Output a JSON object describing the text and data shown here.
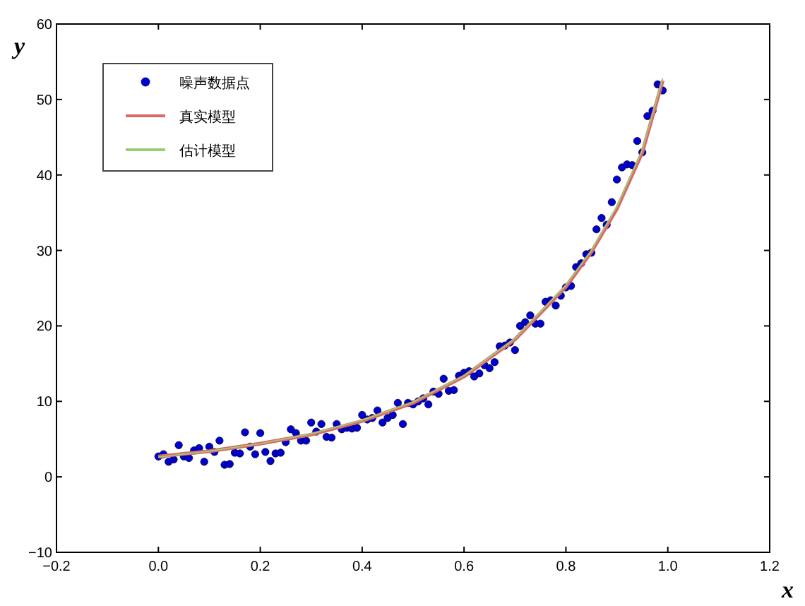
{
  "chart_data": {
    "type": "scatter",
    "xlabel": "x",
    "ylabel": "y",
    "xlim": [
      -0.2,
      1.2
    ],
    "ylim": [
      -10,
      60
    ],
    "xticks": [
      {
        "value": -0.2,
        "label": "−0.2"
      },
      {
        "value": 0.0,
        "label": "0.0"
      },
      {
        "value": 0.2,
        "label": "0.2"
      },
      {
        "value": 0.4,
        "label": "0.4"
      },
      {
        "value": 0.6,
        "label": "0.6"
      },
      {
        "value": 0.8,
        "label": "0.8"
      },
      {
        "value": 1.0,
        "label": "1.0"
      },
      {
        "value": 1.2,
        "label": "1.2"
      }
    ],
    "yticks": [
      {
        "value": -10,
        "label": "−10"
      },
      0,
      10,
      20,
      30,
      40,
      50,
      60
    ],
    "legend": "top left",
    "grid": false,
    "series": [
      {
        "name": "噪声数据点",
        "marker": "circle",
        "color": "#0000cc",
        "x": [
          0.0,
          0.01,
          0.02,
          0.03,
          0.04,
          0.05,
          0.06,
          0.07,
          0.08,
          0.09,
          0.1,
          0.11,
          0.12,
          0.13,
          0.14,
          0.15,
          0.16,
          0.17,
          0.18,
          0.19,
          0.2,
          0.21,
          0.22,
          0.23,
          0.24,
          0.25,
          0.26,
          0.27,
          0.28,
          0.29,
          0.3,
          0.31,
          0.32,
          0.33,
          0.34,
          0.35,
          0.36,
          0.37,
          0.38,
          0.39,
          0.4,
          0.41,
          0.42,
          0.43,
          0.44,
          0.45,
          0.46,
          0.47,
          0.48,
          0.49,
          0.5,
          0.51,
          0.52,
          0.53,
          0.54,
          0.55,
          0.56,
          0.57,
          0.58,
          0.59,
          0.6,
          0.61,
          0.62,
          0.63,
          0.64,
          0.65,
          0.66,
          0.67,
          0.68,
          0.69,
          0.7,
          0.71,
          0.72,
          0.73,
          0.74,
          0.75,
          0.76,
          0.77,
          0.78,
          0.79,
          0.8,
          0.81,
          0.82,
          0.83,
          0.84,
          0.85,
          0.86,
          0.87,
          0.88,
          0.89,
          0.9,
          0.91,
          0.92,
          0.93,
          0.94,
          0.95,
          0.96,
          0.97,
          0.98,
          0.99
        ],
        "values": [
          2.7,
          3.0,
          2.0,
          2.3,
          4.2,
          2.7,
          2.5,
          3.5,
          3.8,
          2.0,
          4.0,
          3.3,
          4.8,
          1.6,
          1.7,
          3.2,
          3.1,
          5.9,
          4.0,
          3.0,
          5.8,
          3.3,
          2.1,
          3.1,
          3.2,
          4.6,
          6.3,
          5.8,
          4.8,
          4.8,
          7.2,
          6.0,
          7.0,
          5.3,
          5.2,
          7.0,
          6.3,
          6.5,
          6.4,
          6.5,
          8.2,
          7.6,
          7.8,
          8.8,
          7.2,
          7.8,
          8.2,
          9.8,
          7.0,
          9.8,
          9.6,
          10.0,
          10.4,
          9.6,
          11.3,
          11.0,
          13.0,
          11.4,
          11.5,
          13.4,
          13.8,
          14.0,
          13.3,
          13.7,
          14.8,
          14.4,
          15.2,
          17.3,
          17.4,
          17.8,
          16.8,
          20.0,
          20.5,
          21.4,
          20.3,
          20.3,
          23.2,
          23.4,
          22.7,
          24.0,
          25.1,
          25.3,
          27.8,
          28.3,
          29.5,
          29.7,
          32.8,
          34.3,
          33.4,
          36.4,
          39.4,
          41.0,
          41.4,
          41.3,
          44.5,
          43.0,
          47.8,
          48.5,
          52.0,
          51.2
        ]
      },
      {
        "name": "真实模型",
        "type": "line",
        "marker": "none",
        "line_style": "solid",
        "color": "#e06666",
        "x": [
          0,
          0.1,
          0.2,
          0.3,
          0.4,
          0.5,
          0.6,
          0.7,
          0.8,
          0.85,
          0.9,
          0.95,
          0.99
        ],
        "values": [
          2.7,
          3.4,
          4.4,
          5.6,
          7.4,
          9.8,
          13.3,
          18.2,
          25.2,
          29.8,
          35.5,
          43.0,
          52.5
        ]
      },
      {
        "name": "估计模型",
        "type": "line",
        "marker": "none",
        "line_style": "solid",
        "color": "#99cc77",
        "x": [
          0,
          0.1,
          0.2,
          0.3,
          0.4,
          0.5,
          0.6,
          0.7,
          0.8,
          0.85,
          0.9,
          0.95,
          0.99
        ],
        "values": [
          2.6,
          3.4,
          4.4,
          5.7,
          7.5,
          9.9,
          13.4,
          18.3,
          25.4,
          30.0,
          35.8,
          43.3,
          52.8
        ]
      }
    ]
  }
}
